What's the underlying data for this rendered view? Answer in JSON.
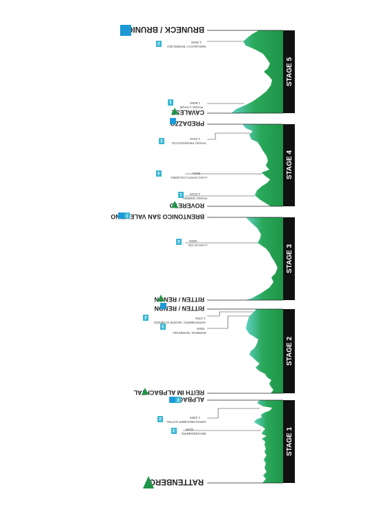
{
  "colors": {
    "profile_top": "#5fd0c4",
    "profile_bottom": "#1f9447",
    "stage_bar": "#111111",
    "badge": "#38b7d4",
    "finish_flag": "#1d9ad6",
    "start_flag": "#1f9447"
  },
  "stages": [
    {
      "label": "STAGE 1"
    },
    {
      "label": "STAGE 2"
    },
    {
      "label": "STAGE 3"
    },
    {
      "label": "STAGE 4"
    },
    {
      "label": "STAGE 5"
    }
  ],
  "towns": [
    {
      "name": "RATTENBERG",
      "icon": "start-flag-icon",
      "big": true
    },
    {
      "name": "ALPBACH",
      "icon": "finish-flag-icon",
      "extra_badge": "2"
    },
    {
      "name": "REITH IM ALPBACHTAL",
      "icon": "start-flag-icon"
    },
    {
      "name": "RITTEN / RENON",
      "icon": "finish-flag-icon"
    },
    {
      "name": "RITTEN / RENON",
      "icon": "start-flag-icon"
    },
    {
      "name": "BRENTONICO SAN VALENTINO",
      "icon": "finish-flag-icon",
      "extra_badge": "1"
    },
    {
      "name": "ROVERETO",
      "icon": "start-flag-icon"
    },
    {
      "name": "PREDAZZO",
      "icon": "finish-flag-icon"
    },
    {
      "name": "CAVALESE",
      "icon": "start-flag-icon"
    },
    {
      "name": "BRUNECK / BRUNICO",
      "icon": "finish-flag-icon",
      "big": true
    }
  ],
  "climbs": [
    {
      "name": "BRANDENBERG",
      "altitude": "916m",
      "category": "3"
    },
    {
      "name": "KERSCHBAUMER SATTEL",
      "altitude": "1.108m",
      "category": "2"
    },
    {
      "name": "BARBIAN / BARBIANO",
      "altitude": "830m",
      "category": "3"
    },
    {
      "name": "ANTERSBERG / MONTE DI MEZZO",
      "altitude": "1.175m",
      "category": "2"
    },
    {
      "name": "LAGO DI CEI",
      "altitude": "934m",
      "category": "2"
    },
    {
      "name": "PASSO SOMMO",
      "altitude": "1.341m",
      "category": "1"
    },
    {
      "name": "LAGO SANTA COLOMBA",
      "altitude": "924m",
      "category": "4"
    },
    {
      "name": "PASSO PRAMADICCIO",
      "altitude": "1.431m",
      "category": "2"
    },
    {
      "name": "PASSO LAVAZE",
      "altitude": "1.805m",
      "category": "1"
    },
    {
      "name": "MÜHLBACH / RIOMOLINO",
      "altitude": "1.460m",
      "category": "2"
    }
  ]
}
